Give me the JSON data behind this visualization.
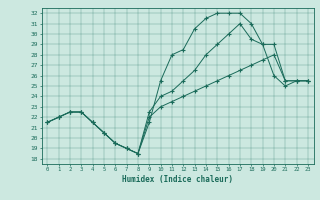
{
  "xlabel": "Humidex (Indice chaleur)",
  "ylabel": "",
  "xlim": [
    -0.5,
    23.5
  ],
  "ylim": [
    17.5,
    32.5
  ],
  "xticks": [
    0,
    1,
    2,
    3,
    4,
    5,
    6,
    7,
    8,
    9,
    10,
    11,
    12,
    13,
    14,
    15,
    16,
    17,
    18,
    19,
    20,
    21,
    22,
    23
  ],
  "yticks": [
    18,
    19,
    20,
    21,
    22,
    23,
    24,
    25,
    26,
    27,
    28,
    29,
    30,
    31,
    32
  ],
  "bg_color": "#cce8e0",
  "line_color": "#1a6b5a",
  "line1_x": [
    0,
    1,
    2,
    3,
    4,
    5,
    6,
    7,
    8,
    9,
    10,
    11,
    12,
    13,
    14,
    15,
    16,
    17,
    18,
    19,
    20,
    21,
    22,
    23
  ],
  "line1_y": [
    21.5,
    22.0,
    22.5,
    22.5,
    21.5,
    20.5,
    19.5,
    19.0,
    18.5,
    21.5,
    25.5,
    28.0,
    28.5,
    30.5,
    31.5,
    32.0,
    32.0,
    32.0,
    31.0,
    29.0,
    26.0,
    25.0,
    25.5,
    25.5
  ],
  "line2_x": [
    0,
    1,
    2,
    3,
    4,
    5,
    6,
    7,
    8,
    9,
    10,
    11,
    12,
    13,
    14,
    15,
    16,
    17,
    18,
    19,
    20,
    21,
    22,
    23
  ],
  "line2_y": [
    21.5,
    22.0,
    22.5,
    22.5,
    21.5,
    20.5,
    19.5,
    19.0,
    18.5,
    22.5,
    24.0,
    24.5,
    25.5,
    26.5,
    28.0,
    29.0,
    30.0,
    31.0,
    29.5,
    29.0,
    29.0,
    25.5,
    25.5,
    25.5
  ],
  "line3_x": [
    0,
    1,
    2,
    3,
    4,
    5,
    6,
    7,
    8,
    9,
    10,
    11,
    12,
    13,
    14,
    15,
    16,
    17,
    18,
    19,
    20,
    21,
    22,
    23
  ],
  "line3_y": [
    21.5,
    22.0,
    22.5,
    22.5,
    21.5,
    20.5,
    19.5,
    19.0,
    18.5,
    22.0,
    23.0,
    23.5,
    24.0,
    24.5,
    25.0,
    25.5,
    26.0,
    26.5,
    27.0,
    27.5,
    28.0,
    25.5,
    25.5,
    25.5
  ]
}
